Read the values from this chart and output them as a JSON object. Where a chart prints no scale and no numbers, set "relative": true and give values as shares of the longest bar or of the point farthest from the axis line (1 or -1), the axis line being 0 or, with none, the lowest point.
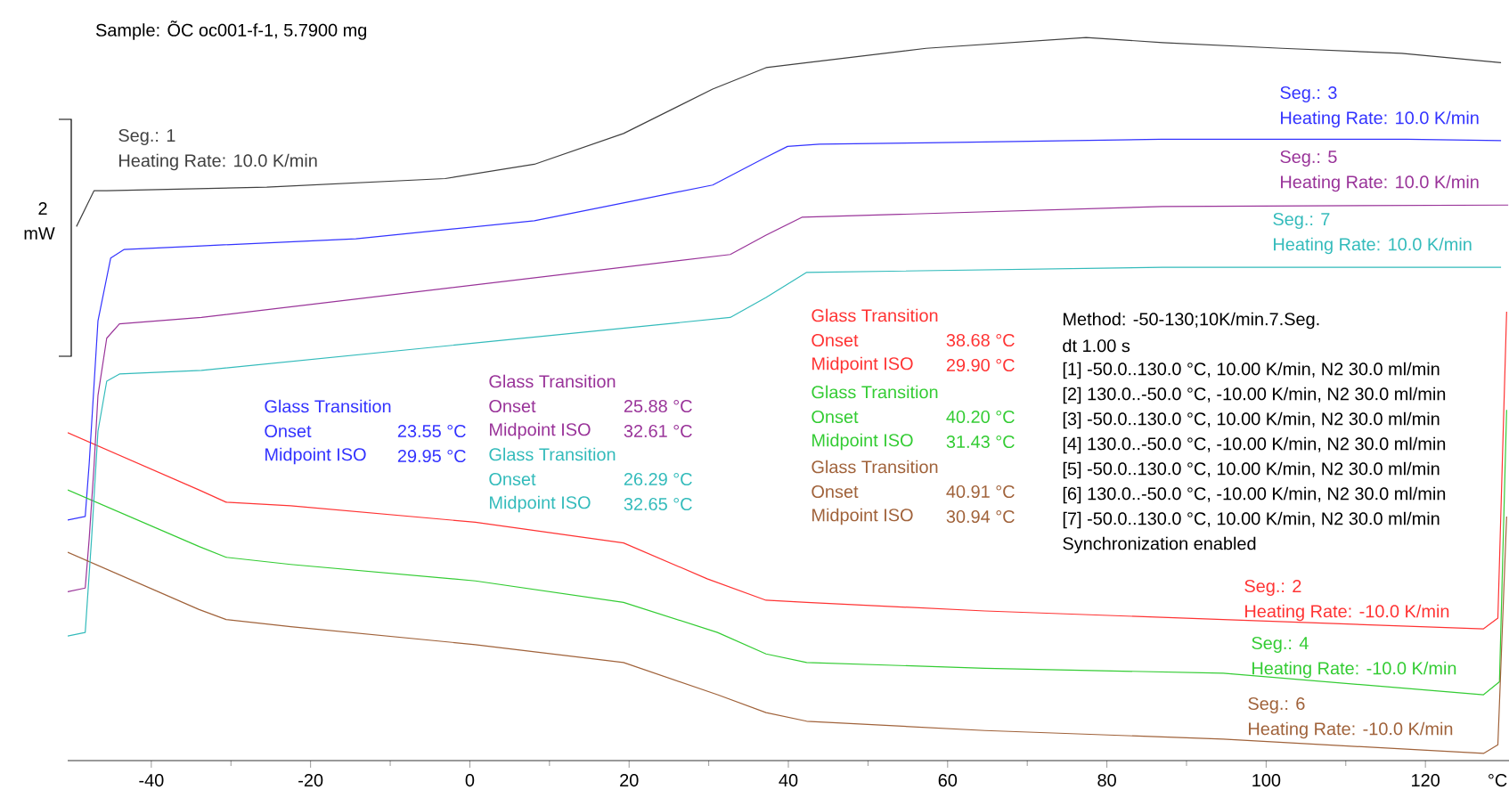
{
  "chart_data": {
    "type": "line",
    "relative": true,
    "title": "Sample: ÕC oc001-f-1, 5.7900 mg",
    "xlabel": "°C",
    "xlim": [
      -50.5,
      130.5
    ],
    "xticks": [
      -40,
      -20,
      0,
      20,
      40,
      60,
      80,
      100,
      120
    ],
    "series": [
      {
        "name": "Seg.: 1",
        "color": "#404040",
        "x": [
          -49.4,
          -47.2,
          -45.6,
          -25.5,
          -3.1,
          8.1,
          19.3,
          30.5,
          37.2,
          42.3,
          57.3,
          77.4,
          87.0,
          102.0,
          117.0,
          129.5
        ],
        "values": [
          0.736,
          0.786,
          0.786,
          0.791,
          0.803,
          0.823,
          0.866,
          0.928,
          0.958,
          0.965,
          0.985,
          1.0,
          0.993,
          0.985,
          0.978,
          0.965
        ]
      },
      {
        "name": "Seg.: 2",
        "color": "#ff3333",
        "x": [
          -50.5,
          -34.0,
          -30.6,
          -22.5,
          0.7,
          19.3,
          29.8,
          37.2,
          42.3,
          64.7,
          94.6,
          127.3,
          129.1,
          130.2
        ],
        "values": [
          0.448,
          0.368,
          0.351,
          0.346,
          0.323,
          0.294,
          0.244,
          0.214,
          0.211,
          0.199,
          0.187,
          0.174,
          0.189,
          0.617
        ]
      },
      {
        "name": "Seg.: 3",
        "color": "#3333ff",
        "x": [
          -50.5,
          -48.3,
          -47.8,
          -46.7,
          -45.1,
          -43.4,
          -33.7,
          -14.3,
          8.1,
          21.5,
          30.5,
          37.2,
          39.9,
          43.9,
          57.3,
          86.8,
          102.0,
          117.7,
          129.5
        ],
        "values": [
          0.326,
          0.331,
          0.405,
          0.604,
          0.692,
          0.704,
          0.709,
          0.719,
          0.744,
          0.774,
          0.794,
          0.833,
          0.848,
          0.851,
          0.853,
          0.858,
          0.858,
          0.858,
          0.856
        ]
      },
      {
        "name": "Seg.: 4",
        "color": "#33cc33",
        "x": [
          -50.5,
          -34.0,
          -30.6,
          -22.5,
          0.7,
          19.3,
          31.1,
          37.2,
          42.3,
          64.7,
          94.6,
          127.3,
          129.3,
          130.2
        ],
        "values": [
          0.368,
          0.289,
          0.274,
          0.264,
          0.241,
          0.211,
          0.169,
          0.139,
          0.127,
          0.119,
          0.112,
          0.082,
          0.1,
          0.48
        ]
      },
      {
        "name": "Seg.: 5",
        "color": "#993399",
        "x": [
          -50.5,
          -48.3,
          -47.8,
          -47.2,
          -46.7,
          -45.6,
          -44.0,
          -33.7,
          32.7,
          37.2,
          41.7,
          87.0,
          130.4
        ],
        "values": [
          0.226,
          0.231,
          0.3,
          0.4,
          0.5,
          0.58,
          0.6,
          0.609,
          0.697,
          0.724,
          0.749,
          0.764,
          0.766
        ]
      },
      {
        "name": "Seg.: 6",
        "color": "#a0623a",
        "x": [
          -50.5,
          -34.0,
          -30.6,
          -22.5,
          0.7,
          19.3,
          31.1,
          37.2,
          42.3,
          64.7,
          94.6,
          127.3,
          129.1,
          130.2
        ],
        "values": [
          0.281,
          0.201,
          0.187,
          0.177,
          0.152,
          0.127,
          0.082,
          0.057,
          0.045,
          0.032,
          0.02,
          0,
          0.012,
          0.331
        ]
      },
      {
        "name": "Seg.: 7",
        "color": "#33bbbb",
        "x": [
          -50.5,
          -48.3,
          -47.5,
          -46.7,
          -45.6,
          -44.0,
          -33.7,
          32.7,
          37.2,
          42.3,
          87.0,
          129.5
        ],
        "values": [
          0.164,
          0.169,
          0.3,
          0.45,
          0.52,
          0.53,
          0.535,
          0.609,
          0.637,
          0.672,
          0.679,
          0.679
        ]
      }
    ],
    "annotations": [
      "2",
      "mW",
      "Heating Rate: 10.0 K/min",
      "Heating Rate: -10.0 K/min",
      "Heating Rate: 10.0 K/min",
      "Heating Rate: -10.0 K/min",
      "Heating Rate: 10.0 K/min",
      "Heating Rate: -10.0 K/min",
      "Heating Rate: 10.0 K/min",
      "Glass Transition",
      "Onset",
      "23.55 °C",
      "Midpoint ISO",
      "29.95 °C",
      "Glass Transition",
      "Onset",
      "25.88 °C",
      "Midpoint ISO",
      "32.61 °C",
      "Glass Transition",
      "Onset",
      "26.29 °C",
      "Midpoint ISO",
      "32.65 °C",
      "Glass Transition",
      "Onset",
      "38.68 °C",
      "Midpoint ISO",
      "29.90 °C",
      "Glass Transition",
      "Onset",
      "40.20 °C",
      "Midpoint ISO",
      "31.43 °C",
      "Glass Transition",
      "Onset",
      "40.91 °C",
      "Midpoint ISO",
      "30.94 °C",
      "Method: -50-130;10K/min.7.Seg.",
      "dt 1.00 s",
      "[1] -50.0..130.0 °C, 10.00 K/min,  N2 30.0 ml/min",
      "[2] 130.0..-50.0 °C, -10.00 K/min, N2 30.0 ml/min",
      "[3] -50.0..130.0 °C, 10.00 K/min,  N2 30.0 ml/min",
      "[4] 130.0..-50.0 °C, -10.00 K/min, N2 30.0 ml/min",
      "[5] -50.0..130.0 °C, 10.00 K/min,  N2 30.0 ml/min",
      "[6] 130.0..-50.0 °C, -10.00 K/min, N2 30.0 ml/min",
      "[7] -50.0..130.0 °C, 10.00 K/min,  N2 30.0 ml/min",
      "Synchronization enabled"
    ]
  }
}
